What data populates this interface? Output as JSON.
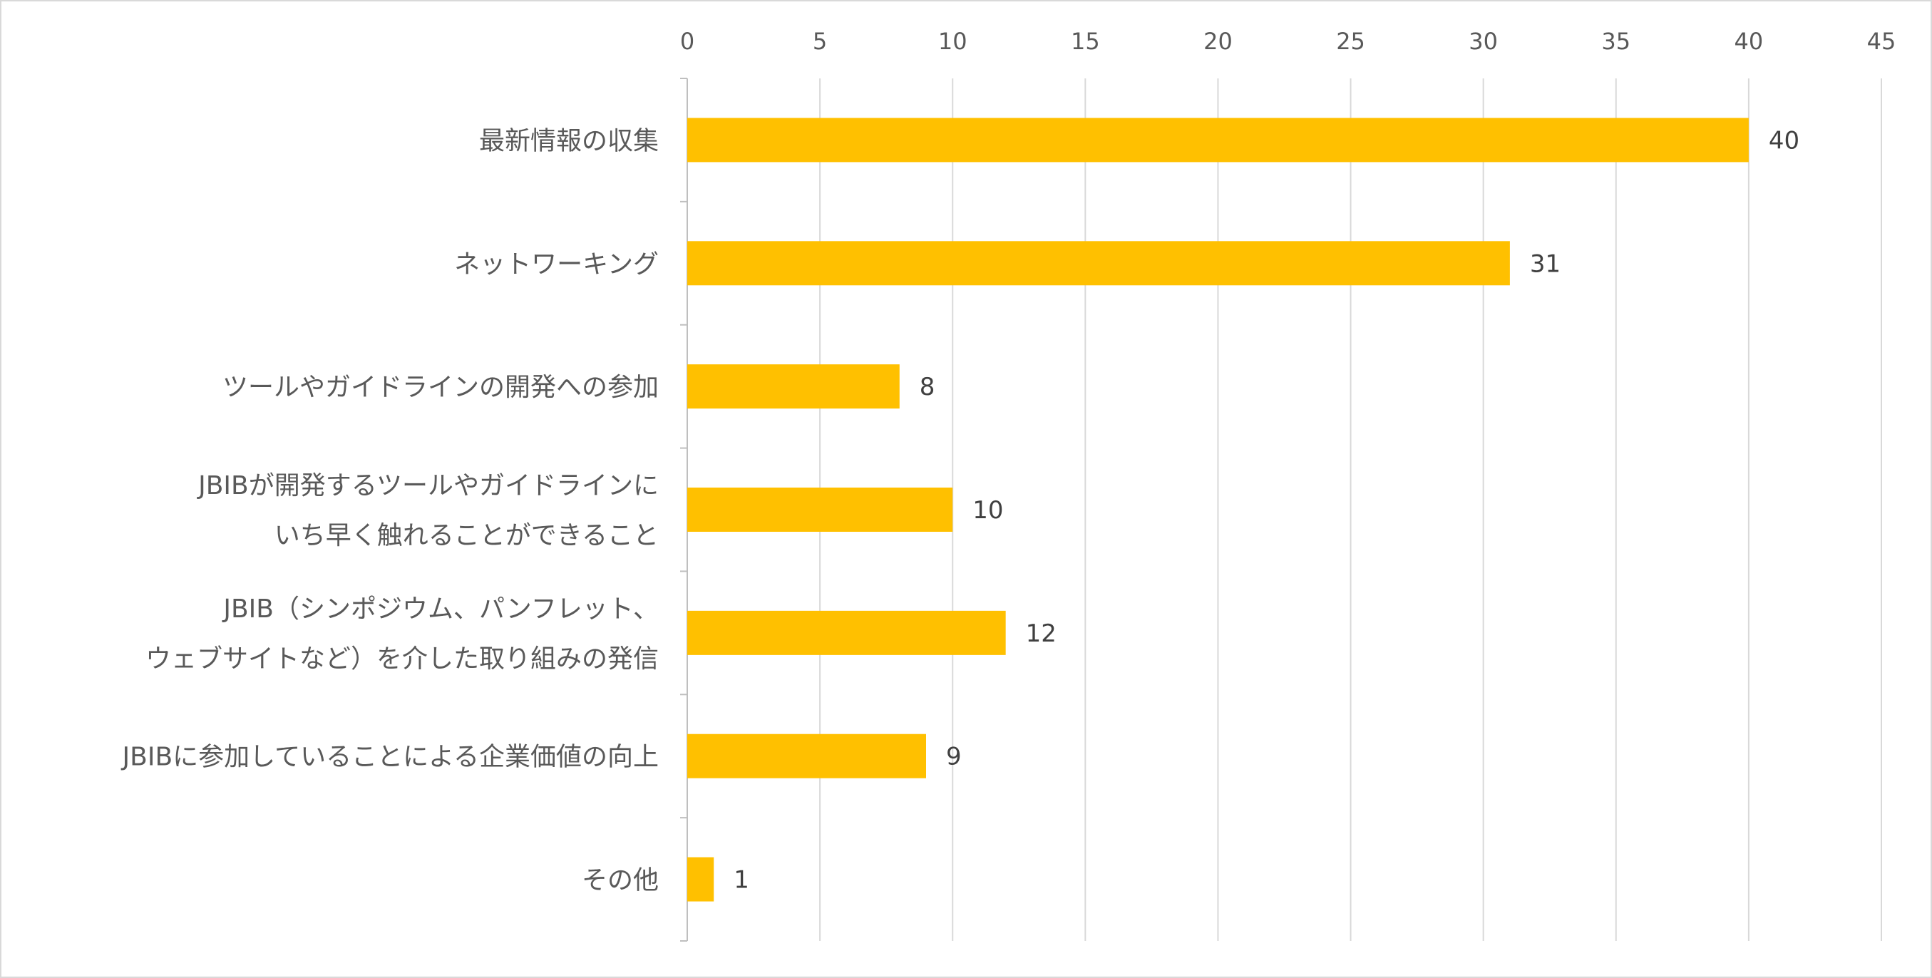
{
  "chart_data": {
    "type": "bar",
    "orientation": "horizontal",
    "categories": [
      [
        "最新情報の収集"
      ],
      [
        "ネットワーキング"
      ],
      [
        "ツールやガイドラインの開発への参加"
      ],
      [
        "JBIBが開発するツールやガイドラインに",
        "いち早く触れることができること"
      ],
      [
        "JBIB（シンポジウム、パンフレット、",
        "ウェブサイトなど）を介した取り組みの発信"
      ],
      [
        "JBIBに参加していることによる企業価値の向上"
      ],
      [
        "その他"
      ]
    ],
    "values": [
      40,
      31,
      8,
      10,
      12,
      9,
      1
    ],
    "xlim": [
      0,
      45
    ],
    "xticks": [
      0,
      5,
      10,
      15,
      20,
      25,
      30,
      35,
      40,
      45
    ],
    "x_axis_position": "top",
    "grid": true,
    "data_labels": true,
    "legend": "none",
    "title": "",
    "xlabel": "",
    "ylabel": "",
    "colors": {
      "bar": "#FFC000",
      "grid": "#d9d9d9",
      "axis": "#bfbfbf",
      "text": "#595959",
      "label": "#404040"
    }
  }
}
